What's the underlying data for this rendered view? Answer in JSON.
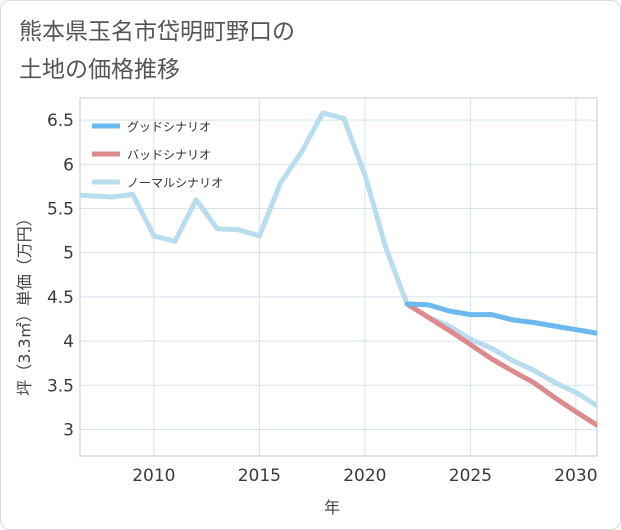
{
  "title_lines": [
    "熊本県玉名市岱明町野口の",
    "土地の価格推移"
  ],
  "chart_data": {
    "type": "line",
    "xlabel": "年",
    "ylabel": "坪（3.3㎡）単価（万円）",
    "xlim": [
      2006.5,
      2031
    ],
    "ylim": [
      2.7,
      6.75
    ],
    "x_ticks": [
      2010,
      2015,
      2020,
      2025,
      2030
    ],
    "y_ticks": [
      3,
      3.5,
      4,
      4.5,
      5,
      5.5,
      6,
      6.5
    ],
    "y_tick_labels": [
      "3",
      "3.5",
      "4",
      "4.5",
      "5",
      "5.5",
      "6",
      "6.5"
    ],
    "grid": true,
    "legend_position": "top-left",
    "series": [
      {
        "name": "グッドシナリオ",
        "color": "#6cb8f0",
        "x": [
          2022,
          2023,
          2024,
          2025,
          2026,
          2027,
          2028,
          2029,
          2030,
          2031
        ],
        "y": [
          4.42,
          4.41,
          4.34,
          4.3,
          4.3,
          4.24,
          4.21,
          4.17,
          4.13,
          4.09
        ]
      },
      {
        "name": "バッドシナリオ",
        "color": "#dd8a8e",
        "x": [
          2022,
          2023,
          2024,
          2025,
          2026,
          2027,
          2028,
          2029,
          2030,
          2031
        ],
        "y": [
          4.42,
          4.27,
          4.12,
          3.96,
          3.8,
          3.66,
          3.53,
          3.36,
          3.2,
          3.05
        ]
      },
      {
        "name": "ノーマルシナリオ",
        "color": "#b9dcee",
        "x": [
          2006.5,
          2008,
          2009,
          2010,
          2011,
          2012,
          2013,
          2014,
          2015,
          2016,
          2017,
          2018,
          2019,
          2020,
          2021,
          2022,
          2023,
          2024,
          2025,
          2026,
          2027,
          2028,
          2029,
          2030,
          2031
        ],
        "y": [
          5.65,
          5.63,
          5.66,
          5.19,
          5.13,
          5.6,
          5.27,
          5.26,
          5.19,
          5.79,
          6.14,
          6.58,
          6.52,
          5.88,
          5.05,
          4.42,
          4.27,
          4.17,
          4.02,
          3.92,
          3.78,
          3.67,
          3.53,
          3.42,
          3.27
        ]
      }
    ]
  }
}
